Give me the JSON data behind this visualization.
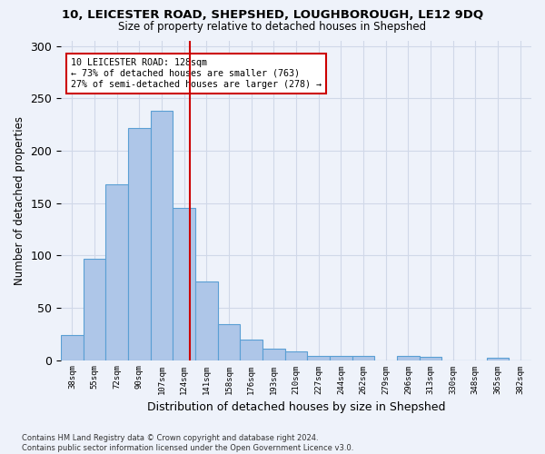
{
  "title_line1": "10, LEICESTER ROAD, SHEPSHED, LOUGHBOROUGH, LE12 9DQ",
  "title_line2": "Size of property relative to detached houses in Shepshed",
  "xlabel": "Distribution of detached houses by size in Shepshed",
  "ylabel": "Number of detached properties",
  "footnote": "Contains HM Land Registry data © Crown copyright and database right 2024.\nContains public sector information licensed under the Open Government Licence v3.0.",
  "bin_labels": [
    "38sqm",
    "55sqm",
    "72sqm",
    "90sqm",
    "107sqm",
    "124sqm",
    "141sqm",
    "158sqm",
    "176sqm",
    "193sqm",
    "210sqm",
    "227sqm",
    "244sqm",
    "262sqm",
    "279sqm",
    "296sqm",
    "313sqm",
    "330sqm",
    "348sqm",
    "365sqm",
    "382sqm"
  ],
  "bar_values": [
    24,
    97,
    168,
    222,
    238,
    145,
    75,
    34,
    20,
    11,
    8,
    4,
    4,
    4,
    0,
    4,
    3,
    0,
    0,
    2,
    0
  ],
  "bar_color": "#aec6e8",
  "bar_edge_color": "#5a9fd4",
  "grid_color": "#d0d8e8",
  "annotation_line1": "10 LEICESTER ROAD: 128sqm",
  "annotation_line2": "← 73% of detached houses are smaller (763)",
  "annotation_line3": "27% of semi-detached houses are larger (278) →",
  "vline_color": "#cc0000",
  "annotation_box_color": "#ffffff",
  "annotation_box_edge": "#cc0000",
  "ylim": [
    0,
    305
  ],
  "background_color": "#eef2fa"
}
